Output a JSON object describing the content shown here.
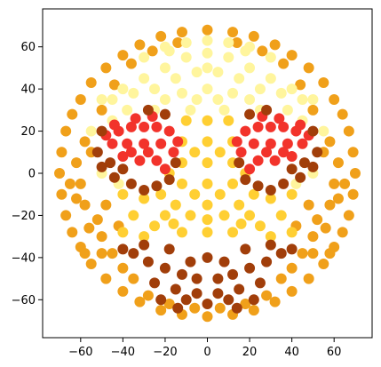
{
  "chart_data": {
    "type": "scatter",
    "title": "",
    "xlabel": "",
    "ylabel": "",
    "xlim": [
      -78,
      78
    ],
    "ylim": [
      -78,
      78
    ],
    "x_ticks": [
      -60,
      -40,
      -20,
      0,
      20,
      40,
      60
    ],
    "y_ticks": [
      -60,
      -40,
      -20,
      0,
      20,
      40,
      60
    ],
    "x_tick_labels": [
      "−60",
      "−40",
      "−20",
      "0",
      "20",
      "40",
      "60"
    ],
    "y_tick_labels": [
      "−60",
      "−40",
      "−20",
      "0",
      "20",
      "40",
      "60"
    ],
    "grid": false,
    "series": [
      {
        "color": "#f0a01a",
        "values": [
          [
            -70,
            0
          ],
          [
            -69,
            10
          ],
          [
            -69,
            -10
          ],
          [
            -67,
            20
          ],
          [
            -67,
            -20
          ],
          [
            -64,
            28
          ],
          [
            -64,
            -28
          ],
          [
            -60,
            35
          ],
          [
            -60,
            -35
          ],
          [
            -55,
            43
          ],
          [
            -55,
            -43
          ],
          [
            -48,
            50
          ],
          [
            -48,
            -50
          ],
          [
            -40,
            56
          ],
          [
            -40,
            -56
          ],
          [
            -32,
            61
          ],
          [
            -32,
            -61
          ],
          [
            -22,
            65
          ],
          [
            -22,
            -65
          ],
          [
            -12,
            67
          ],
          [
            -12,
            -67
          ],
          [
            0,
            68
          ],
          [
            0,
            -68
          ],
          [
            12,
            67
          ],
          [
            12,
            -67
          ],
          [
            22,
            65
          ],
          [
            22,
            -65
          ],
          [
            32,
            61
          ],
          [
            32,
            -61
          ],
          [
            40,
            56
          ],
          [
            40,
            -56
          ],
          [
            48,
            50
          ],
          [
            48,
            -50
          ],
          [
            55,
            43
          ],
          [
            55,
            -43
          ],
          [
            60,
            35
          ],
          [
            60,
            -35
          ],
          [
            64,
            28
          ],
          [
            64,
            -28
          ],
          [
            67,
            20
          ],
          [
            67,
            -20
          ],
          [
            69,
            10
          ],
          [
            69,
            -10
          ],
          [
            70,
            0
          ],
          [
            -62,
            5
          ],
          [
            -60,
            -5
          ],
          [
            -58,
            15
          ],
          [
            -58,
            -15
          ],
          [
            -52,
            -22
          ],
          [
            -50,
            -30
          ],
          [
            -45,
            -38
          ],
          [
            -40,
            -45
          ],
          [
            -35,
            -50
          ],
          [
            62,
            5
          ],
          [
            60,
            -5
          ],
          [
            58,
            15
          ],
          [
            58,
            -15
          ],
          [
            52,
            -22
          ],
          [
            50,
            -30
          ],
          [
            45,
            -38
          ],
          [
            40,
            -45
          ],
          [
            35,
            -50
          ],
          [
            -62,
            -12
          ],
          [
            -56,
            -26
          ],
          [
            -50,
            -38
          ],
          [
            62,
            -12
          ],
          [
            56,
            -26
          ],
          [
            50,
            -38
          ],
          [
            -28,
            -58
          ],
          [
            28,
            -58
          ],
          [
            -18,
            -62
          ],
          [
            18,
            -62
          ],
          [
            -6,
            -64
          ],
          [
            6,
            -64
          ],
          [
            -55,
            10
          ],
          [
            55,
            10
          ],
          [
            -50,
            30
          ],
          [
            50,
            30
          ],
          [
            -44,
            42
          ],
          [
            44,
            42
          ],
          [
            -36,
            52
          ],
          [
            36,
            52
          ],
          [
            -26,
            58
          ],
          [
            26,
            58
          ],
          [
            -14,
            62
          ],
          [
            14,
            62
          ],
          [
            -65,
            -5
          ],
          [
            65,
            -5
          ],
          [
            -48,
            -15
          ],
          [
            48,
            -15
          ],
          [
            -42,
            -25
          ],
          [
            42,
            -25
          ],
          [
            -58,
            -38
          ],
          [
            58,
            -38
          ]
        ]
      },
      {
        "color": "#fff59d",
        "values": [
          [
            -40,
            40
          ],
          [
            -30,
            45
          ],
          [
            -20,
            50
          ],
          [
            -10,
            55
          ],
          [
            0,
            57
          ],
          [
            10,
            55
          ],
          [
            20,
            50
          ],
          [
            30,
            45
          ],
          [
            40,
            40
          ],
          [
            -45,
            35
          ],
          [
            -35,
            38
          ],
          [
            -25,
            40
          ],
          [
            -15,
            45
          ],
          [
            -5,
            48
          ],
          [
            5,
            48
          ],
          [
            15,
            45
          ],
          [
            25,
            40
          ],
          [
            35,
            38
          ],
          [
            45,
            35
          ],
          [
            -30,
            55
          ],
          [
            -20,
            60
          ],
          [
            -10,
            62
          ],
          [
            0,
            63
          ],
          [
            10,
            62
          ],
          [
            20,
            60
          ],
          [
            30,
            55
          ],
          [
            -50,
            35
          ],
          [
            50,
            35
          ],
          [
            -25,
            30
          ],
          [
            25,
            30
          ],
          [
            -12,
            38
          ],
          [
            12,
            38
          ],
          [
            0,
            40
          ],
          [
            -8,
            30
          ],
          [
            8,
            30
          ],
          [
            -38,
            30
          ],
          [
            38,
            30
          ],
          [
            -20,
            35
          ],
          [
            20,
            35
          ],
          [
            -45,
            25
          ],
          [
            45,
            25
          ],
          [
            -55,
            20
          ],
          [
            55,
            20
          ],
          [
            -50,
            0
          ],
          [
            50,
            0
          ],
          [
            -42,
            -5
          ],
          [
            42,
            -5
          ],
          [
            -18,
            58
          ],
          [
            18,
            58
          ],
          [
            0,
            50
          ],
          [
            -5,
            35
          ],
          [
            5,
            35
          ]
        ]
      },
      {
        "color": "#ffcf33",
        "values": [
          [
            -10,
            25
          ],
          [
            0,
            25
          ],
          [
            10,
            25
          ],
          [
            -12,
            15
          ],
          [
            0,
            15
          ],
          [
            12,
            15
          ],
          [
            -12,
            5
          ],
          [
            0,
            5
          ],
          [
            12,
            5
          ],
          [
            -12,
            -5
          ],
          [
            0,
            -5
          ],
          [
            12,
            -5
          ],
          [
            -15,
            -15
          ],
          [
            0,
            -15
          ],
          [
            15,
            -15
          ],
          [
            -20,
            -20
          ],
          [
            -8,
            -20
          ],
          [
            8,
            -20
          ],
          [
            20,
            -20
          ],
          [
            -25,
            -25
          ],
          [
            -12,
            -28
          ],
          [
            0,
            -28
          ],
          [
            12,
            -28
          ],
          [
            25,
            -25
          ],
          [
            -35,
            -20
          ],
          [
            35,
            -20
          ],
          [
            -30,
            -30
          ],
          [
            30,
            -30
          ],
          [
            -40,
            -10
          ],
          [
            40,
            -10
          ],
          [
            -18,
            0
          ],
          [
            18,
            0
          ],
          [
            -6,
            10
          ],
          [
            6,
            10
          ],
          [
            -6,
            -10
          ],
          [
            6,
            -10
          ],
          [
            -30,
            -12
          ],
          [
            30,
            -12
          ],
          [
            -22,
            -10
          ],
          [
            22,
            -10
          ],
          [
            0,
            -22
          ],
          [
            -16,
            -24
          ],
          [
            16,
            -24
          ],
          [
            -40,
            -28
          ],
          [
            40,
            -28
          ]
        ]
      },
      {
        "color": "#f2332b",
        "values": [
          [
            -48,
            18
          ],
          [
            -42,
            20
          ],
          [
            -36,
            22
          ],
          [
            -30,
            22
          ],
          [
            -24,
            22
          ],
          [
            -18,
            20
          ],
          [
            -14,
            15
          ],
          [
            -45,
            14
          ],
          [
            -38,
            14
          ],
          [
            -30,
            14
          ],
          [
            -22,
            14
          ],
          [
            -16,
            10
          ],
          [
            -40,
            8
          ],
          [
            -32,
            6
          ],
          [
            -24,
            6
          ],
          [
            -20,
            2
          ],
          [
            -34,
            26
          ],
          [
            -26,
            27
          ],
          [
            -44,
            23
          ],
          [
            -28,
            10
          ],
          [
            -36,
            10
          ],
          [
            48,
            18
          ],
          [
            42,
            20
          ],
          [
            36,
            22
          ],
          [
            30,
            22
          ],
          [
            24,
            22
          ],
          [
            18,
            20
          ],
          [
            14,
            15
          ],
          [
            45,
            14
          ],
          [
            38,
            14
          ],
          [
            30,
            14
          ],
          [
            22,
            14
          ],
          [
            16,
            10
          ],
          [
            40,
            8
          ],
          [
            32,
            6
          ],
          [
            24,
            6
          ],
          [
            20,
            2
          ],
          [
            34,
            26
          ],
          [
            26,
            27
          ],
          [
            44,
            23
          ],
          [
            28,
            10
          ],
          [
            36,
            10
          ]
        ]
      },
      {
        "color": "#a13e0a",
        "values": [
          [
            -52,
            10
          ],
          [
            -46,
            5
          ],
          [
            -40,
            2
          ],
          [
            -36,
            -5
          ],
          [
            -30,
            -8
          ],
          [
            -24,
            -6
          ],
          [
            -18,
            -3
          ],
          [
            -15,
            5
          ],
          [
            -50,
            3
          ],
          [
            -44,
            -2
          ],
          [
            -28,
            30
          ],
          [
            -20,
            28
          ],
          [
            52,
            10
          ],
          [
            46,
            5
          ],
          [
            40,
            2
          ],
          [
            36,
            -5
          ],
          [
            30,
            -8
          ],
          [
            24,
            -6
          ],
          [
            18,
            -3
          ],
          [
            15,
            5
          ],
          [
            50,
            3
          ],
          [
            44,
            -2
          ],
          [
            28,
            30
          ],
          [
            20,
            28
          ],
          [
            50,
            20
          ],
          [
            -50,
            20
          ],
          [
            -35,
            -38
          ],
          [
            -28,
            -42
          ],
          [
            -20,
            -45
          ],
          [
            -12,
            -48
          ],
          [
            -5,
            -50
          ],
          [
            5,
            -50
          ],
          [
            12,
            -48
          ],
          [
            20,
            -45
          ],
          [
            28,
            -42
          ],
          [
            35,
            -38
          ],
          [
            -25,
            -52
          ],
          [
            -15,
            -55
          ],
          [
            -5,
            -57
          ],
          [
            5,
            -57
          ],
          [
            15,
            -55
          ],
          [
            25,
            -52
          ],
          [
            -30,
            -34
          ],
          [
            30,
            -34
          ],
          [
            -18,
            -36
          ],
          [
            18,
            -36
          ],
          [
            0,
            -40
          ],
          [
            -8,
            -42
          ],
          [
            8,
            -42
          ],
          [
            -10,
            -60
          ],
          [
            0,
            -62
          ],
          [
            10,
            -60
          ],
          [
            -40,
            -36
          ],
          [
            40,
            -36
          ],
          [
            -22,
            -60
          ],
          [
            22,
            -60
          ],
          [
            -14,
            -64
          ],
          [
            14,
            -64
          ]
        ]
      }
    ]
  }
}
